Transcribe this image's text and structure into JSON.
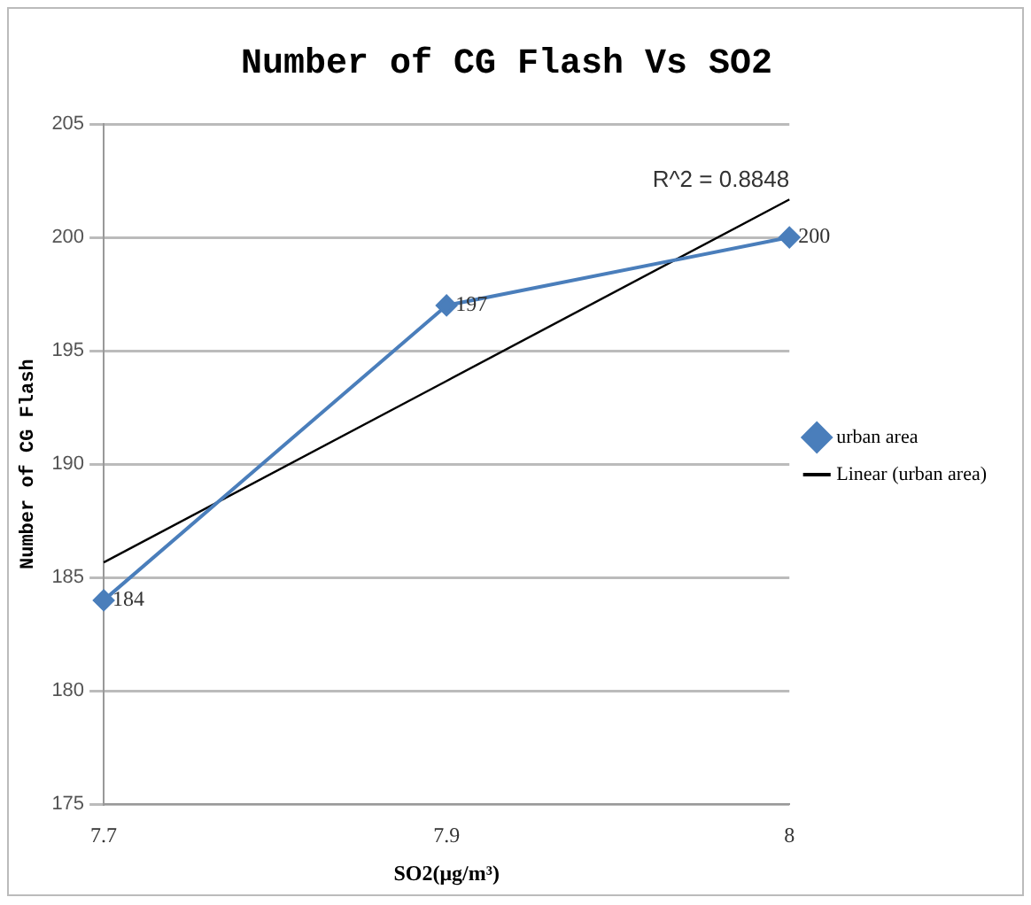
{
  "chart_data": {
    "type": "line",
    "title": "Number of CG Flash Vs SO2",
    "xlabel": "SO2(μg/m³)",
    "ylabel": "Number of CG Flash",
    "categories": [
      "7.7",
      "7.9",
      "8"
    ],
    "series": [
      {
        "name": "urban area",
        "color": "#4a7ebb",
        "values": [
          184,
          197,
          200
        ],
        "marker": "diamond",
        "value_labels": [
          "184",
          "197",
          "200"
        ]
      },
      {
        "name": "Linear (urban area)",
        "color": "#000000",
        "values": [
          185.67,
          193.67,
          201.67
        ],
        "marker": "none"
      }
    ],
    "ylim": [
      175,
      205
    ],
    "yticks": [
      175,
      180,
      185,
      190,
      195,
      200,
      205
    ],
    "grid": "y",
    "legend": "right",
    "annotations": [
      {
        "text": "R^2 = 0.8848",
        "x": "8",
        "y": 201.67
      }
    ]
  }
}
